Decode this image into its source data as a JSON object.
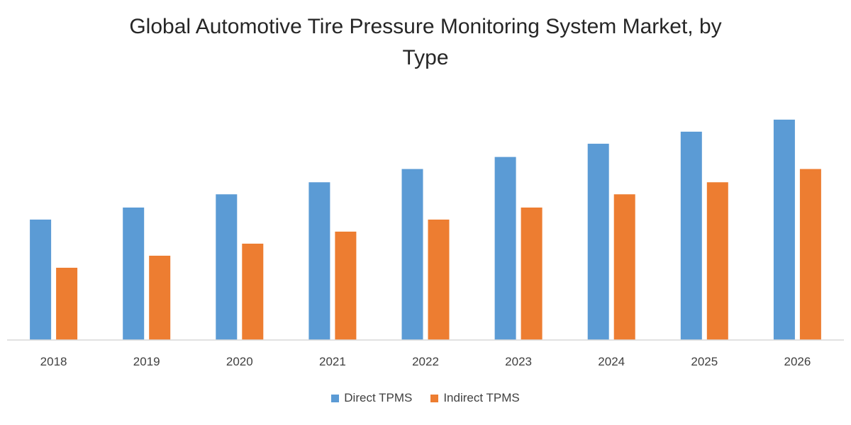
{
  "chart_data": {
    "type": "bar",
    "title_lines": [
      "Global Automotive Tire Pressure Monitoring System Market, by",
      "Type"
    ],
    "categories": [
      "2018",
      "2019",
      "2020",
      "2021",
      "2022",
      "2023",
      "2024",
      "2025",
      "2026"
    ],
    "series": [
      {
        "name": "Direct TPMS",
        "color": "#5B9BD5",
        "values": [
          50,
          55,
          60.5,
          65.5,
          71,
          76,
          81.5,
          86.5,
          91.5
        ]
      },
      {
        "name": "Indirect TPMS",
        "color": "#ED7D31",
        "values": [
          30,
          35,
          40,
          45,
          50,
          55,
          60.5,
          65.5,
          71
        ]
      }
    ],
    "xlabel": "",
    "ylabel": "",
    "ylim": [
      0,
      100
    ],
    "y_axis_visible": false,
    "grid": false,
    "legend_position": "bottom"
  }
}
